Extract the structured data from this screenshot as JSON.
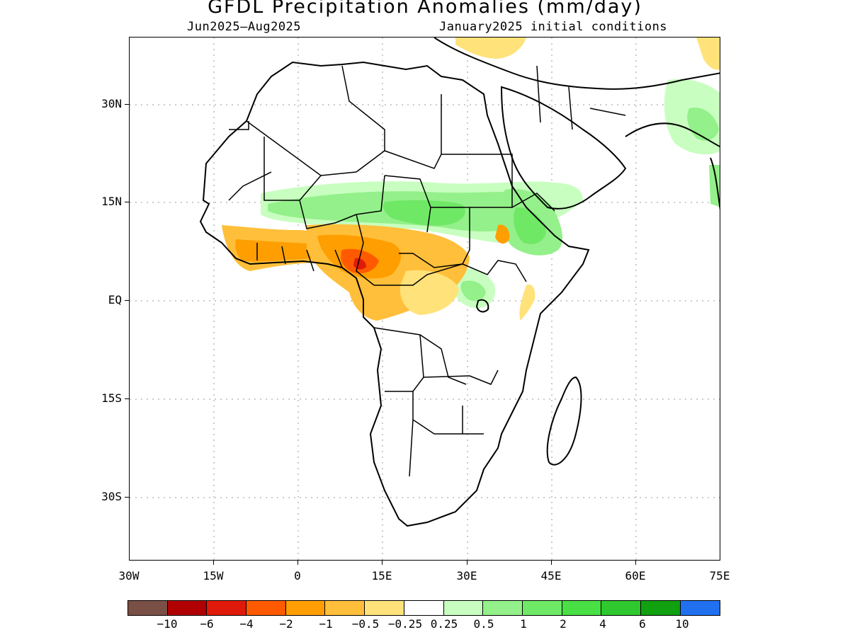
{
  "title": "GFDL Precipitation Anomalies (mm/day)",
  "subtitle_left": "Jun2025–Aug2025",
  "subtitle_right": "January2025 initial conditions",
  "y_axis": {
    "labels": [
      "30N",
      "15N",
      "EQ",
      "15S",
      "30S"
    ]
  },
  "x_axis": {
    "labels": [
      "30W",
      "15W",
      "0",
      "15E",
      "30E",
      "45E",
      "60E",
      "75E"
    ]
  },
  "colorbar": {
    "colors": [
      "#7a4f45",
      "#b00000",
      "#e01a0a",
      "#ff5a00",
      "#ff9e00",
      "#ffbf3a",
      "#ffe27a",
      "#ffffff",
      "#c8ffc0",
      "#94f08a",
      "#6fe866",
      "#48e044",
      "#2fc82e",
      "#10a010",
      "#2070f0"
    ],
    "labels": [
      "−10",
      "−6",
      "−4",
      "−2",
      "−1",
      "−0.5",
      "−0.25",
      "0.25",
      "0.5",
      "1",
      "2",
      "4",
      "6",
      "10"
    ]
  },
  "map": {
    "region": "Africa",
    "lon_range": [
      -30,
      75
    ],
    "lat_range": [
      -40,
      40
    ],
    "grid": "dotted",
    "anomalies": [
      {
        "area": "Sahel band (Senegal to Sudan)",
        "sign": "wet",
        "class": "0.5 to 2"
      },
      {
        "area": "Ethiopian highlands",
        "sign": "wet",
        "class": "1 to 2"
      },
      {
        "area": "Guinea coast",
        "sign": "dry",
        "class": "-1 to -2"
      },
      {
        "area": "Nigeria / Cameroon",
        "sign": "dry",
        "class": "-2 to -4"
      },
      {
        "area": "Central African Republic / Congo",
        "sign": "dry",
        "class": "-0.5 to -1"
      },
      {
        "area": "Lake Victoria region",
        "sign": "wet",
        "class": "0.5 to 1"
      },
      {
        "area": "Southern Arabia / Iran coast",
        "sign": "wet",
        "class": "0.5 to 1"
      }
    ]
  }
}
